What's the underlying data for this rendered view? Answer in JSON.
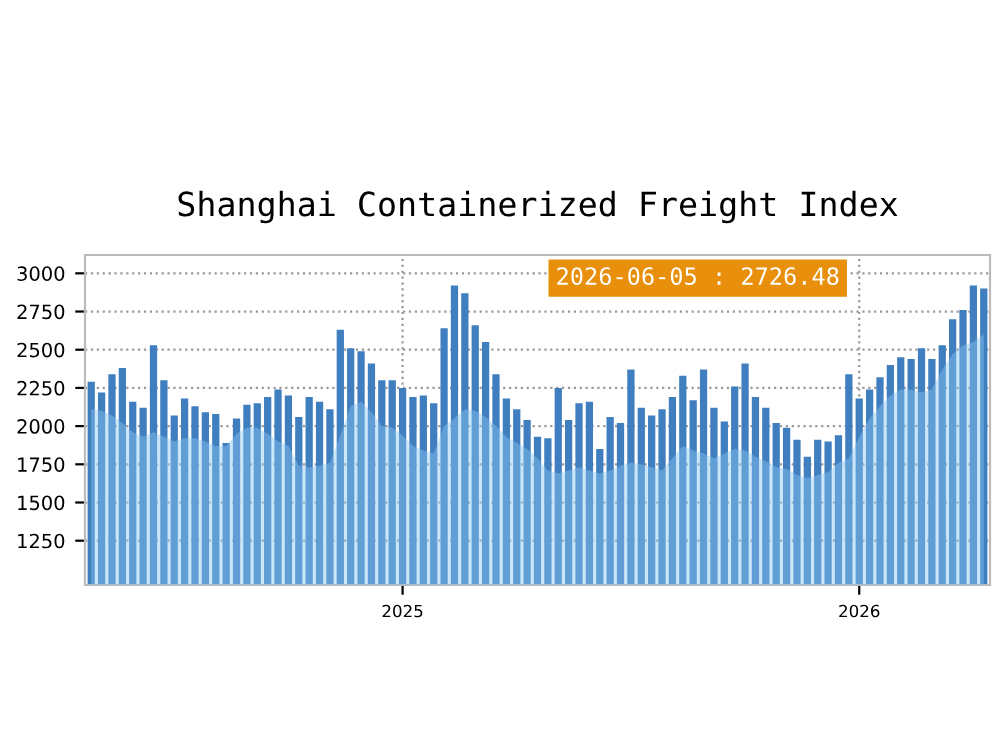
{
  "chart_data": {
    "type": "bar",
    "title": "Shanghai Containerized Freight Index",
    "annotations": [
      "2026-06-05 : 2726.48"
    ],
    "categories": [
      null,
      null,
      null,
      null,
      null,
      null,
      null,
      null,
      null,
      null,
      null,
      null,
      null,
      null,
      null,
      null,
      null,
      null,
      null,
      null,
      null,
      null,
      null,
      null,
      null,
      null,
      null,
      null,
      null,
      null,
      "2025",
      null,
      null,
      null,
      null,
      null,
      null,
      null,
      null,
      null,
      null,
      null,
      null,
      null,
      null,
      null,
      null,
      null,
      null,
      null,
      null,
      null,
      null,
      null,
      null,
      null,
      null,
      null,
      null,
      null,
      null,
      null,
      null,
      null,
      null,
      null,
      null,
      null,
      null,
      null,
      null,
      null,
      null,
      null,
      "2026",
      null,
      null,
      null,
      null,
      null,
      null,
      null,
      null,
      null,
      null,
      null,
      null
    ],
    "series": [
      {
        "color": "#3f7fc0",
        "values": [
          2290,
          2220,
          2340,
          2380,
          2160,
          2120,
          2530,
          2300,
          2070,
          2180,
          2130,
          2090,
          2080,
          1890,
          2050,
          2140,
          2150,
          2190,
          2240,
          2200,
          2060,
          2190,
          2160,
          2110,
          2630,
          2510,
          2490,
          2410,
          2300,
          2300,
          2250,
          2190,
          2200,
          2150,
          2640,
          2920,
          2870,
          2660,
          2550,
          2340,
          2180,
          2110,
          2040,
          1930,
          1920,
          2250,
          2040,
          2150,
          2160,
          1850,
          2060,
          2020,
          2370,
          2120,
          2070,
          2110,
          2190,
          2330,
          2170,
          2370,
          2120,
          2030,
          2260,
          2410,
          2190,
          2120,
          2020,
          1990,
          1910,
          1800,
          1910,
          1900,
          1940,
          2340,
          2180,
          2240,
          2320,
          2400,
          2450,
          2440,
          2510,
          2440,
          2530,
          2700,
          2760,
          2920,
          2900
        ]
      },
      {
        "type": "area",
        "color": "#8cc6f2",
        "values": [
          2110,
          2100,
          2070,
          2020,
          1960,
          1930,
          1960,
          1930,
          1900,
          1920,
          1920,
          1900,
          1870,
          1870,
          1950,
          1990,
          1990,
          1950,
          1900,
          1870,
          1740,
          1730,
          1740,
          1760,
          1940,
          2130,
          2160,
          2090,
          2000,
          1990,
          1940,
          1870,
          1840,
          1820,
          2000,
          2050,
          2110,
          2100,
          2060,
          2000,
          1930,
          1890,
          1850,
          1790,
          1710,
          1690,
          1710,
          1730,
          1710,
          1690,
          1710,
          1740,
          1760,
          1750,
          1730,
          1710,
          1790,
          1870,
          1840,
          1820,
          1790,
          1820,
          1850,
          1840,
          1800,
          1770,
          1730,
          1720,
          1680,
          1660,
          1680,
          1700,
          1760,
          1790,
          1930,
          2050,
          2130,
          2200,
          2240,
          2240,
          2220,
          2240,
          2370,
          2470,
          2530,
          2550,
          2600
        ]
      }
    ],
    "ylim": [
      960,
      3120
    ],
    "yticks": [
      1250,
      1500,
      1750,
      2000,
      2250,
      2500,
      2750,
      3000
    ],
    "grid": true
  }
}
